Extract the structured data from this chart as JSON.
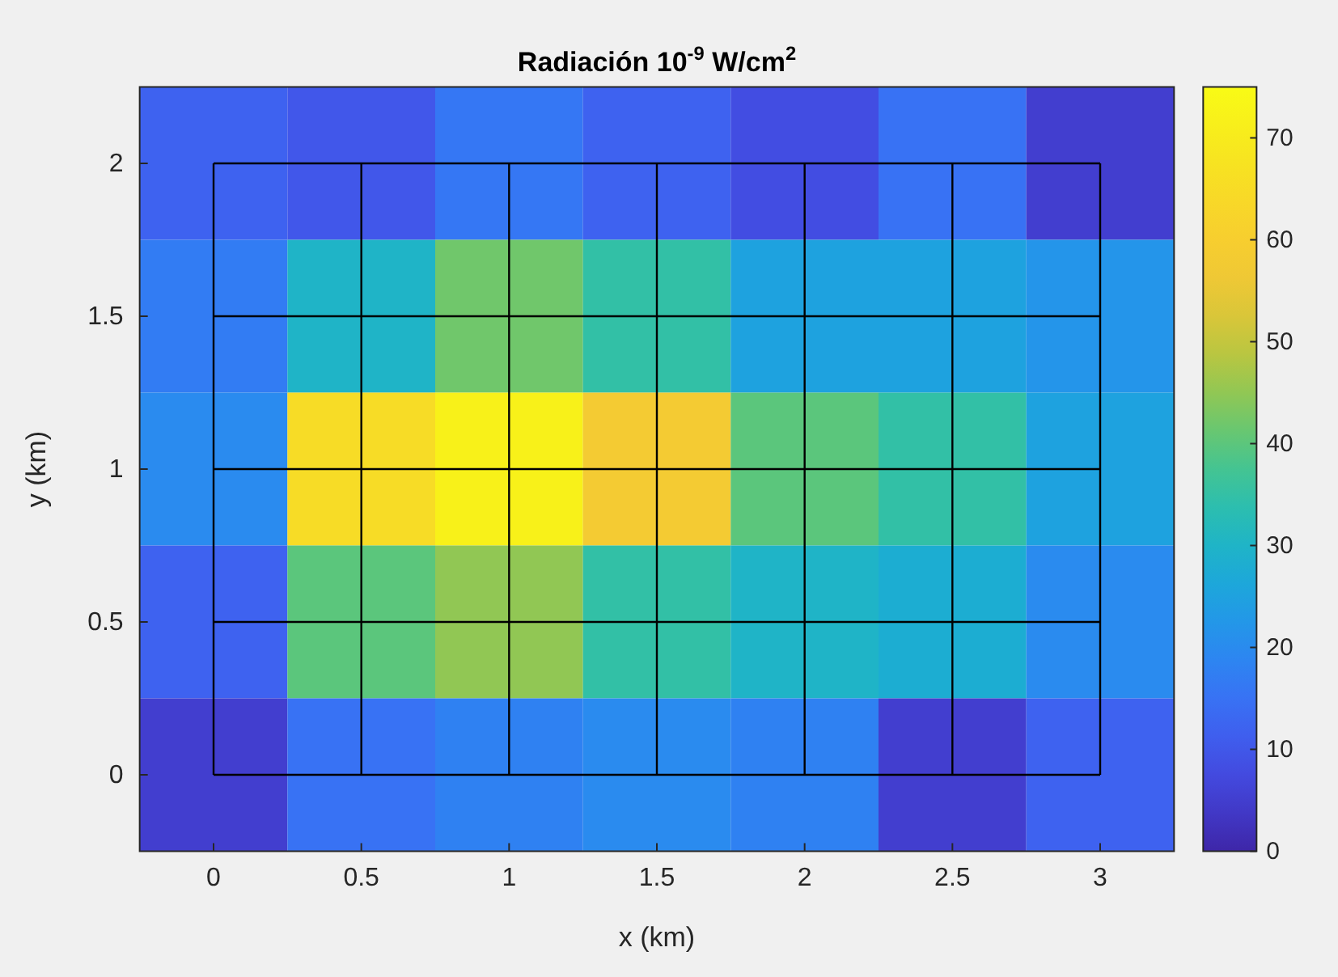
{
  "chart_data": {
    "type": "heatmap",
    "title": "Radiación 10$^{-9}$ W/cm$^{2}$",
    "xlabel": "x (km)",
    "ylabel": "y (km)",
    "categories": [
      "0",
      "0.5",
      "1",
      "1.5",
      "2",
      "2.5",
      "3"
    ],
    "y_categories": [
      "2",
      "1.5",
      "1",
      "0.5",
      "0"
    ],
    "cells": [
      [
        12,
        10,
        16,
        12,
        8,
        15,
        5
      ],
      [
        17,
        30,
        42,
        35,
        25,
        25,
        22
      ],
      [
        20,
        65,
        72,
        58,
        40,
        35,
        25
      ],
      [
        12,
        40,
        45,
        35,
        30,
        28,
        20
      ],
      [
        5,
        15,
        18,
        20,
        18,
        5,
        12
      ]
    ],
    "grid": true,
    "clim": [
      0,
      75
    ],
    "cticks": [
      0,
      10,
      20,
      30,
      40,
      50,
      60,
      70
    ]
  }
}
